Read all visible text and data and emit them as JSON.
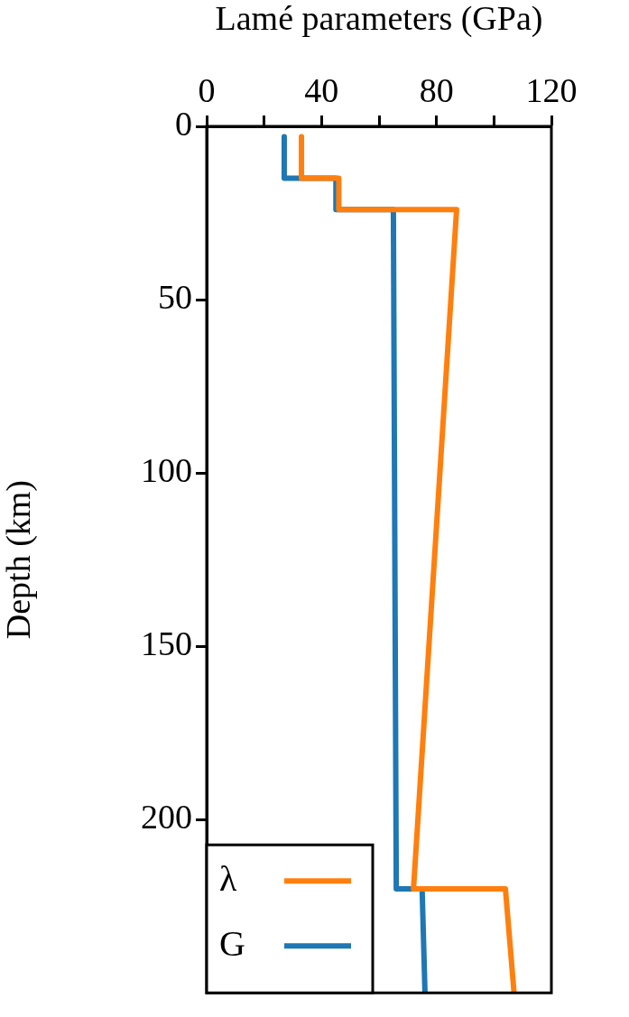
{
  "chart_data": {
    "type": "line",
    "xlabel": "Lamé parameters (GPa)",
    "ylabel": "Depth (km)",
    "xlim": [
      0,
      120
    ],
    "xticks": [
      0,
      {
        "value": 20,
        "label": null
      },
      40,
      {
        "value": 60,
        "label": null
      },
      80,
      {
        "value": 100,
        "label": null
      },
      120
    ],
    "ylim": [
      250,
      0
    ],
    "yticks": [
      0,
      50,
      100,
      150,
      200
    ],
    "grid": false,
    "legend": "bottom left",
    "marker": "none",
    "line_style": "solid",
    "series": [
      {
        "name": "λ",
        "color": "#ff7f0e",
        "x": [
          33,
          33,
          46,
          46,
          87,
          72,
          104,
          107
        ],
        "values": [
          3,
          15,
          15,
          24,
          24,
          220,
          220,
          250
        ]
      },
      {
        "name": "G",
        "color": "#1f77b4",
        "x": [
          27,
          27,
          45,
          45,
          65,
          66,
          75,
          76
        ],
        "values": [
          3,
          15,
          15,
          24,
          24,
          220,
          220,
          250
        ]
      }
    ]
  }
}
